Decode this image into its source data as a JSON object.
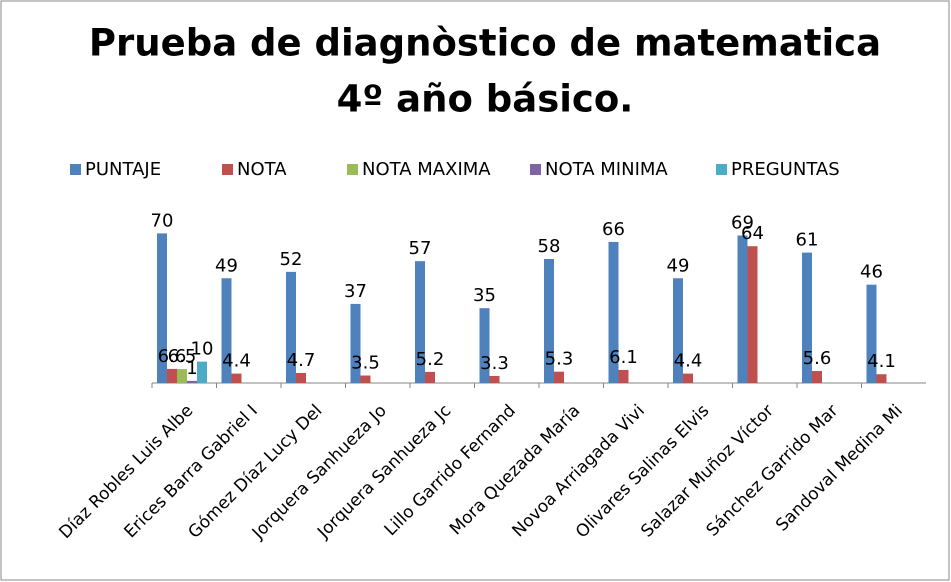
{
  "chart_data": {
    "type": "bar",
    "title": [
      "Prueba de diagnòstico de matematica",
      "4º año básico."
    ],
    "categories": [
      "Díaz Robles Luis Albe",
      "Erices Barra Gabriel I",
      "Gómez Díaz Lucy Del",
      "Jorquera Sanhueza Jo",
      "Jorquera Sanhueza Jc",
      "Lillo Garrido Fernand",
      "Mora Quezada María",
      "Novoa Arriagada Vivi",
      "Olivares Salinas Elvis",
      "Salazar Muñoz Víctor",
      "Sánchez Garrido Mar",
      "Sandoval Medina Mi"
    ],
    "series": [
      {
        "name": "PUNTAJE",
        "color": "#4f81bd",
        "values": [
          70,
          49,
          52,
          37,
          57,
          35,
          58,
          66,
          49,
          69,
          61,
          46
        ]
      },
      {
        "name": "NOTA",
        "color": "#c0504d",
        "values": [
          6.6,
          4.4,
          4.7,
          3.5,
          5.2,
          3.3,
          5.3,
          6.1,
          4.4,
          64,
          5.6,
          4.1
        ]
      },
      {
        "name": "NOTA MAXIMA",
        "color": "#9bbb59",
        "values": [
          6.5,
          null,
          null,
          null,
          null,
          null,
          null,
          null,
          null,
          null,
          null,
          null
        ]
      },
      {
        "name": "NOTA MINIMA",
        "color": "#8064a2",
        "values": [
          1,
          null,
          null,
          null,
          null,
          null,
          null,
          null,
          null,
          null,
          null,
          null
        ]
      },
      {
        "name": "PREGUNTAS",
        "color": "#4bacc6",
        "values": [
          10,
          null,
          null,
          null,
          null,
          null,
          null,
          null,
          null,
          null,
          null,
          null
        ]
      }
    ],
    "ylim": [
      0,
      80
    ]
  }
}
